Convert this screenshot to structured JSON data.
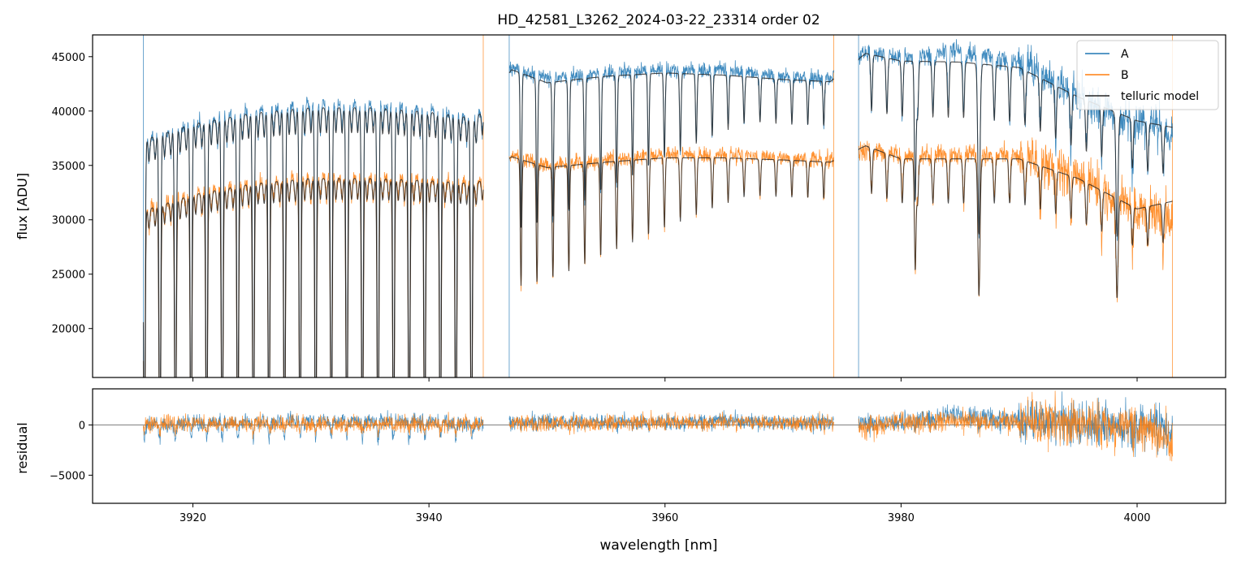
{
  "figure": {
    "title": "HD_42581_L3262_2024-03-22_23314  order 02"
  },
  "colors": {
    "A": "#1f77b4",
    "B": "#ff7f0e",
    "model": "#222222",
    "zero_line": "#555555"
  },
  "chart_data": [
    {
      "type": "line",
      "panel": "top",
      "title": "HD_42581_L3262_2024-03-22_23314  order 02",
      "xlabel": "",
      "ylabel": "flux [ADU]",
      "xlim": [
        3911.5,
        4007.5
      ],
      "ylim": [
        15500,
        47000
      ],
      "x_ticks": [
        3920,
        3940,
        3960,
        3980,
        4000
      ],
      "y_ticks": [
        20000,
        25000,
        30000,
        35000,
        40000,
        45000
      ],
      "y_tick_labels": [
        "20000",
        "25000",
        "30000",
        "35000",
        "40000",
        "45000"
      ],
      "legend": {
        "position": "top-right",
        "entries": [
          "A",
          "B",
          "telluric model"
        ]
      },
      "grid": false,
      "segments": [
        [
          3915.8,
          3944.6
        ],
        [
          3946.8,
          3974.3
        ],
        [
          3976.4,
          4003.0
        ]
      ],
      "series": [
        {
          "name": "A",
          "values_note_x": [
            3916,
            3920,
            3925,
            3930,
            3935,
            3940,
            3944,
            3947,
            3950,
            3955,
            3960,
            3965,
            3970,
            3974,
            3977,
            3980,
            3985,
            3990,
            3995,
            4000,
            4003
          ],
          "continuum": [
            37500,
            39000,
            40200,
            40800,
            40700,
            40300,
            39500,
            44000,
            43000,
            43500,
            43800,
            43800,
            43200,
            43000,
            45500,
            45000,
            45500,
            44500,
            41500,
            39000,
            38000
          ]
        },
        {
          "name": "B",
          "values_note_x": [
            3916,
            3920,
            3925,
            3930,
            3935,
            3940,
            3944,
            3947,
            3950,
            3955,
            3960,
            3965,
            3970,
            3974,
            3977,
            3980,
            3985,
            3990,
            3995,
            4000,
            4003
          ],
          "continuum": [
            31000,
            32500,
            33500,
            34000,
            34000,
            33800,
            33500,
            36000,
            35000,
            35500,
            36000,
            36000,
            35700,
            35500,
            36500,
            36000,
            36000,
            36000,
            34000,
            31000,
            30000
          ]
        },
        {
          "name": "telluric model",
          "values_note_x": [
            3916,
            3920,
            3925,
            3930,
            3935,
            3940,
            3944,
            3947,
            3950,
            3955,
            3960,
            3965,
            3970,
            3974,
            3977,
            3980,
            3985,
            3990,
            3995,
            4000,
            4003
          ],
          "continuum_A": [
            37400,
            38800,
            39800,
            40300,
            40300,
            39900,
            39300,
            43800,
            42600,
            43200,
            43500,
            43300,
            42900,
            42700,
            45300,
            44600,
            44500,
            44000,
            41300,
            39100,
            38500
          ],
          "continuum_B": [
            30900,
            32300,
            33300,
            33800,
            33800,
            33600,
            33300,
            35800,
            34800,
            35300,
            35700,
            35700,
            35500,
            35300,
            36800,
            35600,
            35600,
            35600,
            33800,
            31000,
            31700
          ]
        }
      ]
    },
    {
      "type": "line",
      "panel": "bottom",
      "xlabel": "wavelength [nm]",
      "ylabel": "residual",
      "xlim": [
        3911.5,
        4007.5
      ],
      "ylim": [
        -7800,
        3600
      ],
      "x_ticks": [
        3920,
        3940,
        3960,
        3980,
        4000
      ],
      "x_tick_labels": [
        "3920",
        "3940",
        "3960",
        "3980",
        "4000"
      ],
      "y_ticks": [
        -5000,
        0
      ],
      "y_tick_labels": [
        "−5000",
        "0"
      ],
      "zero_line": 0,
      "grid": false,
      "series": [
        {
          "name": "A",
          "typical_scatter": 800
        },
        {
          "name": "B",
          "typical_scatter": 800
        }
      ]
    }
  ]
}
